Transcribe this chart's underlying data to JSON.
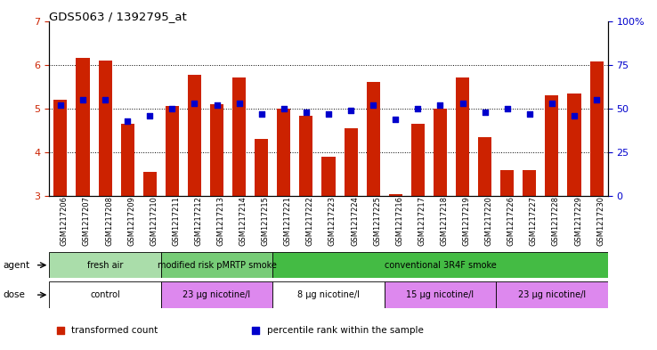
{
  "title": "GDS5063 / 1392795_at",
  "samples": [
    "GSM1217206",
    "GSM1217207",
    "GSM1217208",
    "GSM1217209",
    "GSM1217210",
    "GSM1217211",
    "GSM1217212",
    "GSM1217213",
    "GSM1217214",
    "GSM1217215",
    "GSM1217221",
    "GSM1217222",
    "GSM1217223",
    "GSM1217224",
    "GSM1217225",
    "GSM1217216",
    "GSM1217217",
    "GSM1217218",
    "GSM1217219",
    "GSM1217220",
    "GSM1217226",
    "GSM1217227",
    "GSM1217228",
    "GSM1217229",
    "GSM1217230"
  ],
  "bar_values": [
    5.2,
    6.15,
    6.1,
    4.65,
    3.55,
    5.05,
    5.78,
    5.1,
    5.7,
    4.3,
    5.0,
    4.83,
    3.9,
    4.55,
    5.6,
    3.05,
    4.65,
    5.0,
    5.7,
    4.35,
    3.6,
    3.6,
    5.3,
    5.35,
    6.08
  ],
  "blue_values": [
    52,
    55,
    55,
    43,
    46,
    50,
    53,
    52,
    53,
    47,
    50,
    48,
    47,
    49,
    52,
    44,
    50,
    52,
    53,
    48,
    50,
    47,
    53,
    46,
    55
  ],
  "ylim_left": [
    3,
    7
  ],
  "ylim_right": [
    0,
    100
  ],
  "yticks_left": [
    3,
    4,
    5,
    6,
    7
  ],
  "yticks_right": [
    0,
    25,
    50,
    75,
    100
  ],
  "bar_color": "#cc2200",
  "dot_color": "#0000cc",
  "agent_groups": [
    {
      "label": "fresh air",
      "start": 0,
      "end": 5,
      "color": "#aaddaa"
    },
    {
      "label": "modified risk pMRTP smoke",
      "start": 5,
      "end": 10,
      "color": "#77cc77"
    },
    {
      "label": "conventional 3R4F smoke",
      "start": 10,
      "end": 25,
      "color": "#44bb44"
    }
  ],
  "dose_groups": [
    {
      "label": "control",
      "start": 0,
      "end": 5,
      "color": "#ffffff"
    },
    {
      "label": "23 μg nicotine/l",
      "start": 5,
      "end": 10,
      "color": "#dd88ee"
    },
    {
      "label": "8 μg nicotine/l",
      "start": 10,
      "end": 15,
      "color": "#ffffff"
    },
    {
      "label": "15 μg nicotine/l",
      "start": 15,
      "end": 20,
      "color": "#dd88ee"
    },
    {
      "label": "23 μg nicotine/l",
      "start": 20,
      "end": 25,
      "color": "#dd88ee"
    }
  ],
  "agent_label": "agent",
  "dose_label": "dose",
  "grid_yticks": [
    4,
    5,
    6
  ],
  "legend_items": [
    {
      "label": "transformed count",
      "color": "#cc2200"
    },
    {
      "label": "percentile rank within the sample",
      "color": "#0000cc"
    }
  ]
}
